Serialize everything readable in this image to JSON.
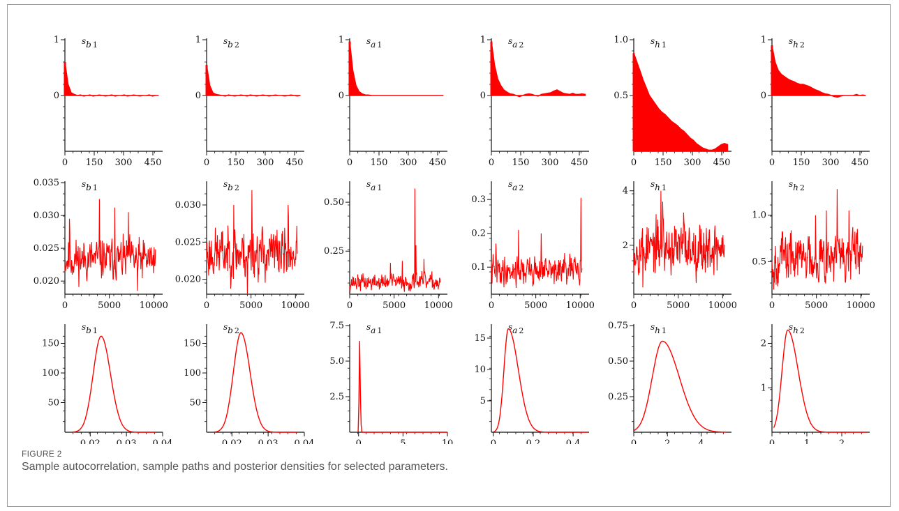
{
  "figure": {
    "label": "FIGURE 2",
    "caption": "Sample autocorrelation, sample paths and posterior densities for selected parameters."
  },
  "colors": {
    "series": "#ff0000",
    "axis": "#111111",
    "text": "#555555",
    "border": "#9a9a9a"
  },
  "chart_data": [
    {
      "row": "autocorrelation",
      "type": "area",
      "title": "s_{b1}",
      "xlim": [
        0,
        500
      ],
      "ylim": [
        -1,
        1
      ],
      "xticks": [
        0,
        150,
        300,
        450
      ],
      "yticks": [
        {
          "v": 1,
          "t": "1"
        },
        {
          "v": 0,
          "t": "0"
        }
      ],
      "values": [
        0.6,
        0.2,
        0.05,
        0.02,
        0.0,
        0.01,
        -0.01,
        0.0,
        0.01,
        -0.01,
        0.0,
        0.01,
        0.0,
        -0.01,
        0.0,
        0.01,
        -0.01,
        0.0,
        0.0,
        0.01,
        -0.01,
        0.0,
        0.01,
        0.0,
        -0.01,
        0.0,
        0.0,
        0.01,
        -0.01,
        0.0,
        0.0
      ]
    },
    {
      "row": "autocorrelation",
      "type": "area",
      "title": "s_{b2}",
      "xlim": [
        0,
        500
      ],
      "ylim": [
        -1,
        1
      ],
      "xticks": [
        0,
        150,
        300,
        450
      ],
      "yticks": [
        {
          "v": 1,
          "t": "1"
        },
        {
          "v": 0,
          "t": "0"
        }
      ],
      "values": [
        0.55,
        0.18,
        0.05,
        0.02,
        0.01,
        0.0,
        -0.01,
        0.01,
        0.0,
        -0.01,
        0.0,
        0.01,
        0.0,
        -0.01,
        0.01,
        0.0,
        -0.01,
        0.0,
        0.01,
        0.0,
        -0.01,
        0.0,
        0.01,
        0.0,
        0.0,
        -0.01,
        0.0,
        0.01,
        0.0,
        -0.01,
        0.0
      ]
    },
    {
      "row": "autocorrelation",
      "type": "area",
      "title": "s_{a1}",
      "xlim": [
        0,
        500
      ],
      "ylim": [
        -1,
        1
      ],
      "xticks": [
        0,
        150,
        300,
        450
      ],
      "yticks": [
        {
          "v": 1,
          "t": "1"
        },
        {
          "v": 0,
          "t": "0"
        }
      ],
      "values": [
        0.97,
        0.45,
        0.18,
        0.07,
        0.03,
        0.01,
        0.01,
        0.0,
        0.0,
        0.0,
        0.0,
        0.0,
        0.0,
        0.0,
        0.0,
        0.0,
        0.0,
        0.0,
        0.0,
        0.0,
        0.0,
        0.0,
        0.0,
        0.0,
        0.0,
        0.0,
        0.0,
        0.0,
        0.0,
        0.0,
        0.0
      ]
    },
    {
      "row": "autocorrelation",
      "type": "area",
      "title": "s_{a2}",
      "xlim": [
        0,
        500
      ],
      "ylim": [
        -1,
        1
      ],
      "xticks": [
        0,
        150,
        300,
        450
      ],
      "yticks": [
        {
          "v": 1,
          "t": "1"
        },
        {
          "v": 0,
          "t": "0"
        }
      ],
      "values": [
        0.97,
        0.55,
        0.3,
        0.18,
        0.1,
        0.06,
        0.03,
        0.02,
        0.0,
        -0.02,
        0.0,
        0.02,
        0.03,
        0.02,
        0.0,
        -0.01,
        0.02,
        0.03,
        0.04,
        0.05,
        0.08,
        0.1,
        0.07,
        0.04,
        0.03,
        0.02,
        0.04,
        0.02,
        0.02,
        0.03,
        0.02
      ]
    },
    {
      "row": "autocorrelation",
      "type": "area",
      "title": "s_{h1}",
      "xlim": [
        0,
        500
      ],
      "ylim": [
        0,
        1
      ],
      "xticks": [
        0,
        150,
        300,
        450
      ],
      "yticks": [
        {
          "v": 1,
          "t": "1.0"
        },
        {
          "v": 0.5,
          "t": "0.5"
        }
      ],
      "values": [
        0.88,
        0.8,
        0.72,
        0.64,
        0.57,
        0.5,
        0.46,
        0.42,
        0.38,
        0.35,
        0.33,
        0.3,
        0.27,
        0.25,
        0.23,
        0.2,
        0.18,
        0.15,
        0.12,
        0.1,
        0.07,
        0.05,
        0.03,
        0.02,
        0.01,
        0.01,
        0.02,
        0.04,
        0.06,
        0.07,
        0.06
      ]
    },
    {
      "row": "autocorrelation",
      "type": "area",
      "title": "s_{h2}",
      "xlim": [
        0,
        500
      ],
      "ylim": [
        -1,
        1
      ],
      "xticks": [
        0,
        150,
        300,
        450
      ],
      "yticks": [
        {
          "v": 1,
          "t": "1"
        },
        {
          "v": 0,
          "t": "0"
        }
      ],
      "values": [
        0.9,
        0.6,
        0.45,
        0.38,
        0.34,
        0.3,
        0.27,
        0.25,
        0.22,
        0.2,
        0.2,
        0.18,
        0.16,
        0.13,
        0.1,
        0.08,
        0.05,
        0.03,
        0.02,
        0.0,
        -0.02,
        -0.03,
        -0.01,
        0.0,
        0.0,
        0.0,
        0.0,
        0.02,
        0.0,
        0.01,
        0.0
      ]
    },
    {
      "row": "sample_path",
      "type": "line",
      "title": "s_{b1}",
      "xlim": [
        0,
        11000
      ],
      "ylim": [
        0.018,
        0.035
      ],
      "xticks": [
        {
          "v": 0,
          "t": "0"
        },
        {
          "v": 5000,
          "t": "5000"
        },
        {
          "v": 10000,
          "t": "10000"
        }
      ],
      "yticks": [
        {
          "v": 0.035,
          "t": "0.035"
        },
        {
          "v": 0.03,
          "t": "0.030"
        },
        {
          "v": 0.025,
          "t": "0.025"
        },
        {
          "v": 0.02,
          "t": "0.020"
        }
      ],
      "x_end": 10200,
      "mean": 0.0233,
      "sd": 0.0018,
      "spikes": [
        [
          0.05,
          0.0295
        ],
        [
          0.38,
          0.0325
        ],
        [
          0.55,
          0.0312
        ],
        [
          0.7,
          0.0305
        ],
        [
          0.8,
          0.0185
        ]
      ],
      "seed": 11
    },
    {
      "row": "sample_path",
      "type": "line",
      "title": "s_{b2}",
      "xlim": [
        0,
        11000
      ],
      "ylim": [
        0.018,
        0.033
      ],
      "xticks": [
        {
          "v": 0,
          "t": "0"
        },
        {
          "v": 5000,
          "t": "5000"
        },
        {
          "v": 10000,
          "t": "10000"
        }
      ],
      "yticks": [
        {
          "v": 0.03,
          "t": "0.030"
        },
        {
          "v": 0.025,
          "t": "0.025"
        },
        {
          "v": 0.02,
          "t": "0.020"
        }
      ],
      "x_end": 10200,
      "mean": 0.0235,
      "sd": 0.002,
      "spikes": [
        [
          0.5,
          0.032
        ],
        [
          0.45,
          0.018
        ],
        [
          0.9,
          0.03
        ],
        [
          0.3,
          0.03
        ]
      ],
      "seed": 23
    },
    {
      "row": "sample_path",
      "type": "line",
      "title": "s_{a1}",
      "xlim": [
        0,
        11000
      ],
      "ylim": [
        0.03,
        0.6
      ],
      "xticks": [
        {
          "v": 0,
          "t": "0"
        },
        {
          "v": 5000,
          "t": "5000"
        },
        {
          "v": 10000,
          "t": "10000"
        }
      ],
      "yticks": [
        {
          "v": 0.5,
          "t": "0.50"
        },
        {
          "v": 0.25,
          "t": "0.25"
        }
      ],
      "x_end": 10200,
      "mean": 0.09,
      "sd": 0.025,
      "spikes": [
        [
          0.72,
          0.57
        ],
        [
          0.73,
          0.28
        ],
        [
          0.58,
          0.2
        ],
        [
          0.45,
          0.19
        ],
        [
          0.82,
          0.21
        ]
      ],
      "seed": 37
    },
    {
      "row": "sample_path",
      "type": "line",
      "title": "s_{a2}",
      "xlim": [
        0,
        11000
      ],
      "ylim": [
        0.02,
        0.35
      ],
      "xticks": [
        {
          "v": 0,
          "t": "0"
        },
        {
          "v": 5000,
          "t": "5000"
        },
        {
          "v": 10000,
          "t": "10000"
        }
      ],
      "yticks": [
        {
          "v": 0.3,
          "t": "0.3"
        },
        {
          "v": 0.2,
          "t": "0.2"
        },
        {
          "v": 0.1,
          "t": "0.1"
        }
      ],
      "x_end": 10200,
      "mean": 0.09,
      "sd": 0.025,
      "spikes": [
        [
          0.99,
          0.305
        ],
        [
          0.3,
          0.21
        ],
        [
          0.55,
          0.2
        ],
        [
          0.05,
          0.17
        ]
      ],
      "seed": 41
    },
    {
      "row": "sample_path",
      "type": "line",
      "title": "s_{h1}",
      "xlim": [
        0,
        11000
      ],
      "ylim": [
        0.2,
        4.3
      ],
      "xticks": [
        {
          "v": 0,
          "t": "0"
        },
        {
          "v": 5000,
          "t": "5000"
        },
        {
          "v": 10000,
          "t": "10000"
        }
      ],
      "yticks": [
        {
          "v": 4,
          "t": "4"
        },
        {
          "v": 2,
          "t": "2"
        }
      ],
      "x_end": 10200,
      "mean": 1.9,
      "sd": 0.55,
      "spikes": [
        [
          0.3,
          4.0
        ],
        [
          0.32,
          3.6
        ],
        [
          0.1,
          0.45
        ],
        [
          0.55,
          3.2
        ]
      ],
      "seed": 53
    },
    {
      "row": "sample_path",
      "type": "line",
      "title": "s_{h2}",
      "xlim": [
        0,
        11000
      ],
      "ylim": [
        0.15,
        1.35
      ],
      "xticks": [
        {
          "v": 0,
          "t": "0"
        },
        {
          "v": 5000,
          "t": "5000"
        },
        {
          "v": 10000,
          "t": "10000"
        }
      ],
      "yticks": [
        {
          "v": 1.0,
          "t": "1.0"
        },
        {
          "v": 0.5,
          "t": "0.5"
        }
      ],
      "x_end": 10200,
      "mean": 0.55,
      "sd": 0.16,
      "spikes": [
        [
          0.72,
          1.28
        ],
        [
          0.48,
          1.0
        ],
        [
          0.6,
          1.05
        ],
        [
          0.02,
          0.2
        ],
        [
          0.85,
          1.05
        ]
      ],
      "seed": 67
    },
    {
      "row": "posterior_density",
      "type": "line",
      "title": "s_{b1}",
      "xlim": [
        0.013,
        0.04
      ],
      "ylim": [
        0,
        180
      ],
      "xticks": [
        {
          "v": 0.02,
          "t": "0.02"
        },
        {
          "v": 0.03,
          "t": "0.03"
        },
        {
          "v": 0.04,
          "t": "0.04"
        }
      ],
      "yticks": [
        {
          "v": 150,
          "t": "150"
        },
        {
          "v": 100,
          "t": "100"
        },
        {
          "v": 50,
          "t": "50"
        }
      ],
      "density": {
        "mode": 0.023,
        "peak": 162,
        "sdl": 0.0022,
        "sdr": 0.0026,
        "from": 0.015,
        "to": 0.038
      }
    },
    {
      "row": "posterior_density",
      "type": "line",
      "title": "s_{b2}",
      "xlim": [
        0.013,
        0.04
      ],
      "ylim": [
        0,
        180
      ],
      "xticks": [
        {
          "v": 0.02,
          "t": "0.02"
        },
        {
          "v": 0.03,
          "t": "0.03"
        },
        {
          "v": 0.04,
          "t": "0.04"
        }
      ],
      "yticks": [
        {
          "v": 150,
          "t": "150"
        },
        {
          "v": 100,
          "t": "100"
        },
        {
          "v": 50,
          "t": "50"
        }
      ],
      "density": {
        "mode": 0.0225,
        "peak": 168,
        "sdl": 0.0021,
        "sdr": 0.0025,
        "from": 0.015,
        "to": 0.038
      }
    },
    {
      "row": "posterior_density",
      "type": "line",
      "title": "s_{a1}",
      "xlim": [
        -1,
        10
      ],
      "ylim": [
        0,
        7.5
      ],
      "xticks": [
        {
          "v": 0,
          "t": "0"
        },
        {
          "v": 5,
          "t": "5"
        },
        {
          "v": 10,
          "t": "10"
        }
      ],
      "yticks": [
        {
          "v": 7.5,
          "t": "7.5"
        },
        {
          "v": 5,
          "t": "5.0"
        },
        {
          "v": 2.5,
          "t": "2.5"
        }
      ],
      "density": {
        "mode": 0.08,
        "peak": 7.0,
        "sdl": 0.03,
        "sdr": 0.09,
        "from": -0.05,
        "to": 10
      }
    },
    {
      "row": "posterior_density",
      "type": "line",
      "title": "s_{a2}",
      "xlim": [
        -0.01,
        0.48
      ],
      "ylim": [
        0,
        17
      ],
      "xticks": [
        {
          "v": 0,
          "t": "0"
        },
        {
          "v": 0.2,
          "t": "0.2"
        },
        {
          "v": 0.4,
          "t": "0.4"
        }
      ],
      "yticks": [
        {
          "v": 15,
          "t": "15"
        },
        {
          "v": 10,
          "t": "10"
        },
        {
          "v": 5,
          "t": "5"
        }
      ],
      "density": {
        "mode": 0.075,
        "peak": 16.5,
        "sdl": 0.022,
        "sdr": 0.05,
        "from": 0.0,
        "to": 0.47
      }
    },
    {
      "row": "posterior_density",
      "type": "line",
      "title": "s_{h1}",
      "xlim": [
        0,
        5.8
      ],
      "ylim": [
        0,
        0.75
      ],
      "xticks": [
        {
          "v": 0,
          "t": "0"
        },
        {
          "v": 2,
          "t": "2"
        },
        {
          "v": 4,
          "t": "4"
        }
      ],
      "yticks": [
        {
          "v": 0.75,
          "t": "0.75"
        },
        {
          "v": 0.5,
          "t": "0.50"
        },
        {
          "v": 0.25,
          "t": "0.25"
        }
      ],
      "density": {
        "mode": 1.7,
        "peak": 0.64,
        "sdl": 0.6,
        "sdr": 1.0,
        "from": 0.0,
        "to": 5.5
      }
    },
    {
      "row": "posterior_density",
      "type": "line",
      "title": "s_{h2}",
      "xlim": [
        0,
        2.8
      ],
      "ylim": [
        0,
        2.4
      ],
      "xticks": [
        {
          "v": 0,
          "t": "0"
        },
        {
          "v": 1,
          "t": "1"
        },
        {
          "v": 2,
          "t": "2"
        }
      ],
      "yticks": [
        {
          "v": 2,
          "t": "2"
        },
        {
          "v": 1,
          "t": "1"
        }
      ],
      "density": {
        "mode": 0.45,
        "peak": 2.3,
        "sdl": 0.16,
        "sdr": 0.3,
        "from": 0.05,
        "to": 2.7
      }
    }
  ]
}
